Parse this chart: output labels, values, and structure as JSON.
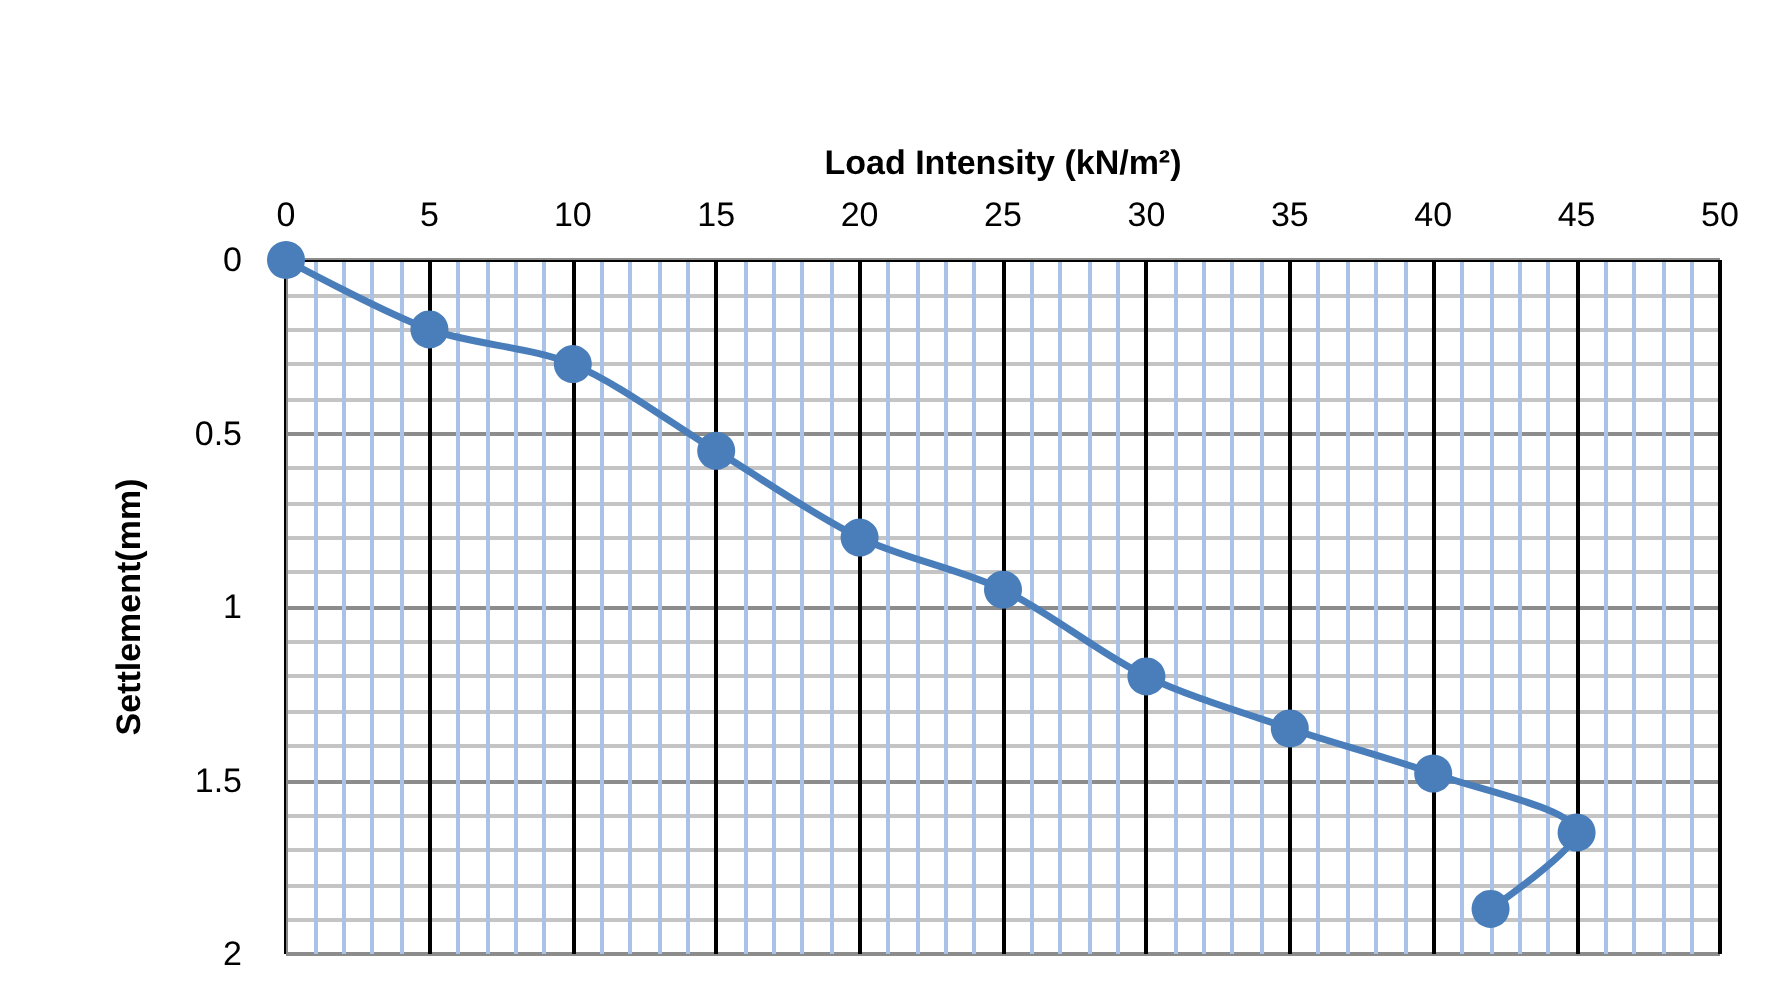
{
  "chart_data": {
    "type": "line",
    "xlabel": "Load Intensity (kN/m²)",
    "ylabel": "Settlement(mm)",
    "x": [
      0,
      5,
      10,
      15,
      20,
      25,
      30,
      35,
      40,
      45,
      42
    ],
    "series": [
      {
        "color": "#4a7ebb",
        "values": [
          0,
          0.2,
          0.3,
          0.55,
          0.8,
          0.95,
          1.2,
          1.35,
          1.48,
          1.65,
          1.87
        ]
      }
    ],
    "xlim": [
      0,
      50
    ],
    "xticks": [
      0,
      {
        "value": 1,
        "label": null
      },
      {
        "value": 2,
        "label": null
      },
      {
        "value": 3,
        "label": null
      },
      {
        "value": 4,
        "label": null
      },
      5,
      {
        "value": 6,
        "label": null
      },
      {
        "value": 7,
        "label": null
      },
      {
        "value": 8,
        "label": null
      },
      {
        "value": 9,
        "label": null
      },
      10,
      {
        "value": 11,
        "label": null
      },
      {
        "value": 12,
        "label": null
      },
      {
        "value": 13,
        "label": null
      },
      {
        "value": 14,
        "label": null
      },
      15,
      {
        "value": 16,
        "label": null
      },
      {
        "value": 17,
        "label": null
      },
      {
        "value": 18,
        "label": null
      },
      {
        "value": 19,
        "label": null
      },
      20,
      {
        "value": 21,
        "label": null
      },
      {
        "value": 22,
        "label": null
      },
      {
        "value": 23,
        "label": null
      },
      {
        "value": 24,
        "label": null
      },
      25,
      {
        "value": 26,
        "label": null
      },
      {
        "value": 27,
        "label": null
      },
      {
        "value": 28,
        "label": null
      },
      {
        "value": 29,
        "label": null
      },
      30,
      {
        "value": 31,
        "label": null
      },
      {
        "value": 32,
        "label": null
      },
      {
        "value": 33,
        "label": null
      },
      {
        "value": 34,
        "label": null
      },
      35,
      {
        "value": 36,
        "label": null
      },
      {
        "value": 37,
        "label": null
      },
      {
        "value": 38,
        "label": null
      },
      {
        "value": 39,
        "label": null
      },
      40,
      {
        "value": 41,
        "label": null
      },
      {
        "value": 42,
        "label": null
      },
      {
        "value": 43,
        "label": null
      },
      {
        "value": 44,
        "label": null
      },
      45,
      {
        "value": 46,
        "label": null
      },
      {
        "value": 47,
        "label": null
      },
      {
        "value": 48,
        "label": null
      },
      {
        "value": 49,
        "label": null
      },
      50
    ],
    "ylim": [
      2,
      0
    ],
    "yticks": [
      0,
      {
        "value": 0.1,
        "label": null
      },
      {
        "value": 0.2,
        "label": null
      },
      {
        "value": 0.3,
        "label": null
      },
      {
        "value": 0.4,
        "label": null
      },
      0.5,
      {
        "value": 0.6,
        "label": null
      },
      {
        "value": 0.7,
        "label": null
      },
      {
        "value": 0.8,
        "label": null
      },
      {
        "value": 0.9,
        "label": null
      },
      1,
      {
        "value": 1.1,
        "label": null
      },
      {
        "value": 1.2,
        "label": null
      },
      {
        "value": 1.3,
        "label": null
      },
      {
        "value": 1.4,
        "label": null
      },
      1.5,
      {
        "value": 1.6,
        "label": null
      },
      {
        "value": 1.7,
        "label": null
      },
      {
        "value": 1.8,
        "label": null
      },
      {
        "value": 1.9,
        "label": null
      },
      2
    ],
    "grid": true,
    "marker": "circle",
    "line_style": "solid"
  }
}
